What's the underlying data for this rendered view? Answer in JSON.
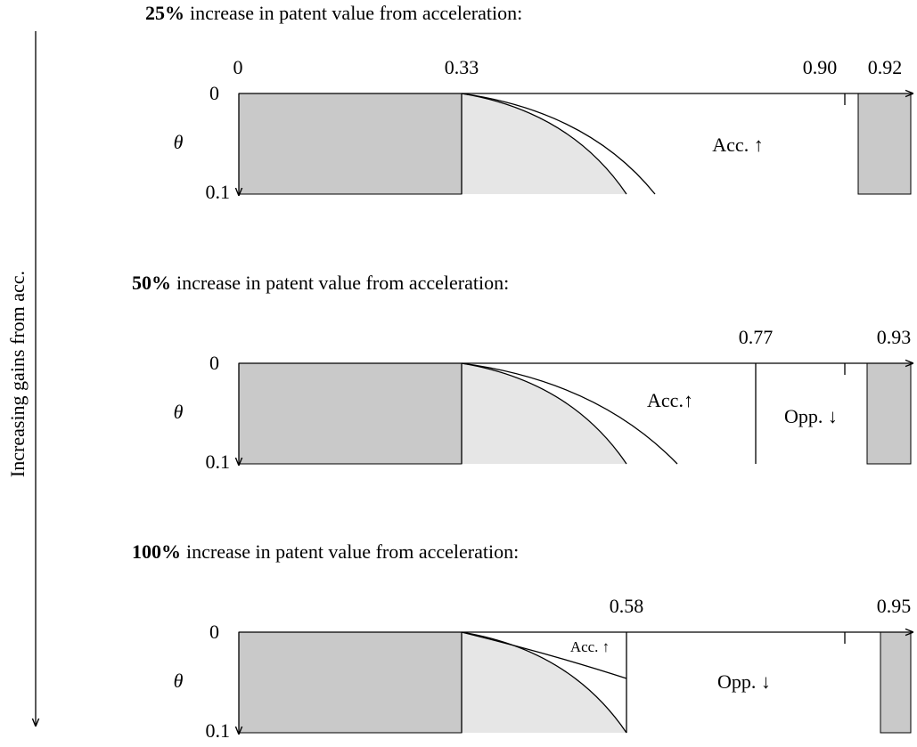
{
  "side_label": "Increasing gains from acc.",
  "panels": [
    {
      "title_bold": "25%",
      "title_rest": "increase in patent value from acceleration:",
      "x_labels": [
        "0",
        "0.33",
        "0.90",
        "0.92"
      ],
      "y_labels": [
        "0",
        "0.1"
      ],
      "y_axis_label": "θ",
      "regions": [
        "Acc. ↑"
      ]
    },
    {
      "title_bold": "50%",
      "title_rest": "increase in patent value from acceleration:",
      "x_labels": [
        "0.77",
        "0.93"
      ],
      "y_labels": [
        "0",
        "0.1"
      ],
      "y_axis_label": "θ",
      "regions": [
        "Acc.↑",
        "Opp. ↓"
      ]
    },
    {
      "title_bold": "100%",
      "title_rest": "increase in patent value from acceleration:",
      "x_labels": [
        "0.58",
        "0.95"
      ],
      "y_labels": [
        "0",
        "0.1"
      ],
      "y_axis_label": "θ",
      "regions": [
        "Acc. ↑",
        "Opp. ↓"
      ]
    }
  ]
}
